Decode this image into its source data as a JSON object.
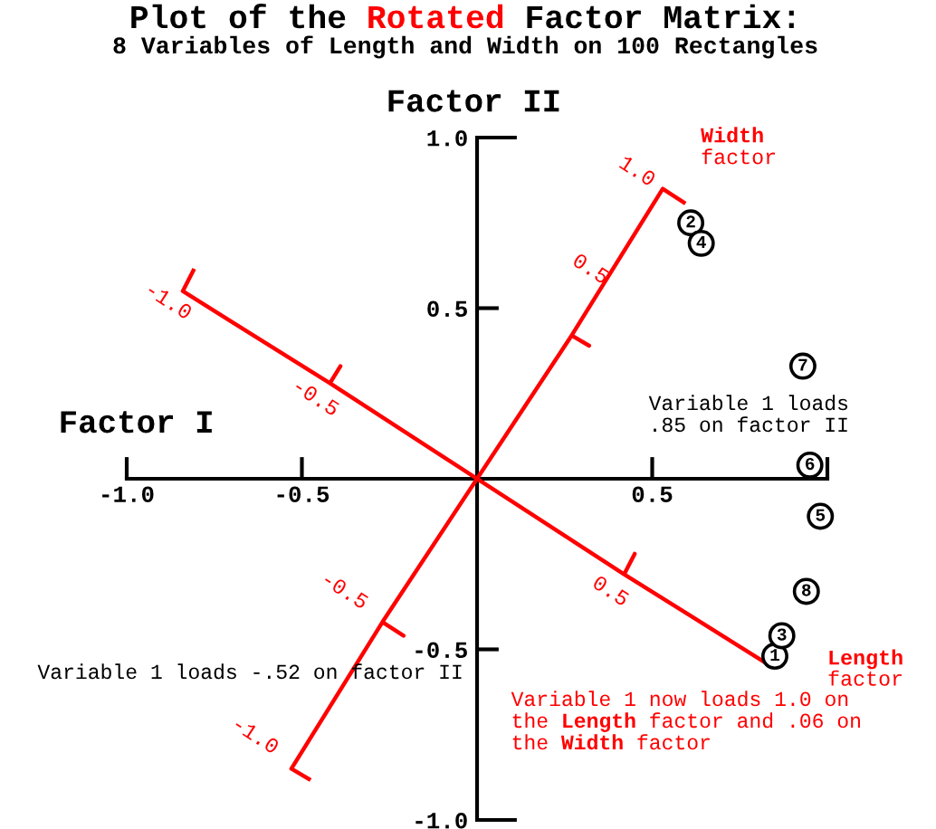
{
  "chart_data": {
    "type": "scatter",
    "title": "Plot of the Rotated Factor Matrix:",
    "subtitle": "8 Variables of Length and Width on 100 Rectangles",
    "xlabel": "Factor I",
    "ylabel": "Factor II",
    "xlim": [
      -1,
      1
    ],
    "ylim": [
      -1,
      1
    ],
    "xticks": [
      {
        "value": -1,
        "label": "-1.0"
      },
      -0.5,
      0.5,
      {
        "value": 1,
        "label": null
      }
    ],
    "yticks": [
      {
        "value": -1,
        "label": "-1.0"
      },
      -0.5,
      0.5,
      {
        "value": 1,
        "label": "1.0"
      }
    ],
    "line_style": "solid",
    "series": [
      {
        "marker": "circle",
        "color": "#000000",
        "x": [
          0.85,
          0.61,
          0.87,
          0.64,
          0.98,
          0.95,
          0.93,
          0.94
        ],
        "values": [
          -0.52,
          0.75,
          -0.46,
          0.69,
          -0.11,
          0.04,
          0.33,
          -0.33
        ]
      },
      {
        "name": "Width factor",
        "type": "line",
        "color": "#ff0000",
        "x": [
          -0.48,
          -0.53,
          -0.27,
          -0.21,
          -0.27,
          0.27,
          0.32,
          0.27,
          0.53,
          0.59
        ],
        "values": [
          -0.88,
          -0.85,
          -0.42,
          -0.46,
          -0.42,
          0.42,
          0.39,
          0.42,
          0.85,
          0.81
        ]
      },
      {
        "name": "Length factor",
        "type": "line",
        "color": "#ff0000",
        "x": [
          -0.81,
          -0.84,
          -0.42,
          -0.39,
          -0.42,
          0.42,
          0.45,
          0.42,
          0.84,
          0.87
        ],
        "values": [
          0.61,
          0.55,
          0.28,
          0.33,
          0.28,
          -0.28,
          -0.22,
          -0.28,
          -0.55,
          -0.5
        ]
      }
    ],
    "annotations": [
      "Variable 1 loads\n.85 on factor II",
      "Variable 1 loads -.52 on factor II",
      "Variable 1 now loads 1.0 on\nthe Length factor and .06 on\nthe Width factor",
      "1.0",
      "0.5",
      "-0.5",
      "-1.0",
      "-1.0",
      "-0.5",
      "0.5",
      {
        "text": "1",
        "x": 0.85,
        "y": -0.52
      },
      {
        "text": "2",
        "x": 0.61,
        "y": 0.75
      },
      {
        "text": "3",
        "x": 0.87,
        "y": -0.46
      },
      {
        "text": "4",
        "x": 0.64,
        "y": 0.69
      },
      {
        "text": "5",
        "x": 0.98,
        "y": -0.11
      },
      {
        "text": "6",
        "x": 0.95,
        "y": 0.04
      },
      {
        "text": "7",
        "x": 0.93,
        "y": 0.33
      },
      {
        "text": "8",
        "x": 0.94,
        "y": -0.33
      }
    ]
  }
}
